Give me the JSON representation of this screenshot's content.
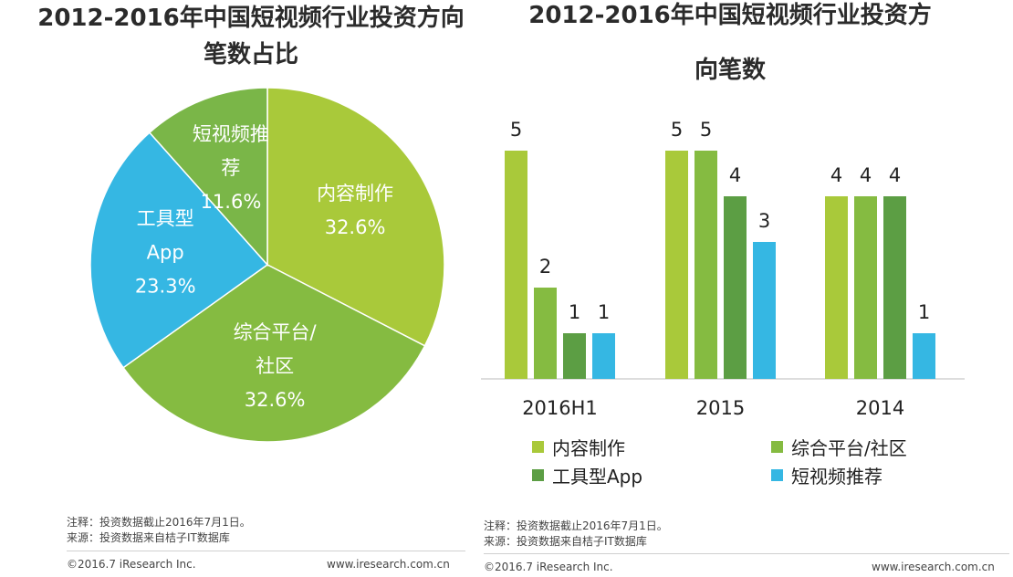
{
  "pie": {
    "title_line1": "2012-2016年中国短视频行业投资方向",
    "title_line2": "笔数占比",
    "chart_data": {
      "type": "pie",
      "slices": [
        {
          "label_lines": [
            "内容制作"
          ],
          "value": 32.6,
          "value_label": "32.6%",
          "color": "#A9C93A"
        },
        {
          "label_lines": [
            "综合平台/",
            "社区"
          ],
          "value": 32.6,
          "value_label": "32.6%",
          "color": "#85BB41"
        },
        {
          "label_lines": [
            "工具型",
            "App"
          ],
          "value": 23.3,
          "value_label": "23.3%",
          "color": "#35B7E3"
        },
        {
          "label_lines": [
            "短视频推",
            "荐"
          ],
          "value": 11.6,
          "value_label": "11.6%",
          "color": "#7AB648"
        }
      ]
    },
    "note": "注释：投资数据截止2016年7月1日。",
    "source": "来源：投资数据来自桔子IT数据库",
    "copyright": "©2016.7 iResearch Inc.",
    "website": "www.iresearch.com.cn"
  },
  "bar": {
    "title_line1": "2012-2016年中国短视频行业投资方",
    "title_line2": "向笔数",
    "chart_data": {
      "type": "bar",
      "categories": [
        "2016H1",
        "2015",
        "2014"
      ],
      "series": [
        {
          "name": "内容制作",
          "values": [
            5,
            5,
            4
          ],
          "color": "#A9C93A"
        },
        {
          "name": "综合平台/社区",
          "values": [
            2,
            5,
            4
          ],
          "color": "#85BB41"
        },
        {
          "name": "工具型App",
          "values": [
            1,
            4,
            4
          ],
          "color": "#5C9E44"
        },
        {
          "name": "短视频推荐",
          "values": [
            1,
            3,
            1
          ],
          "color": "#35B7E3"
        }
      ],
      "ylim": [
        0,
        5
      ],
      "grid": false,
      "legend_position": "bottom"
    },
    "note": "注释：投资数据截止2016年7月1日。",
    "source": "来源：投资数据来自桔子IT数据库",
    "copyright": "©2016.7 iResearch Inc.",
    "website": "www.iresearch.com.cn"
  }
}
